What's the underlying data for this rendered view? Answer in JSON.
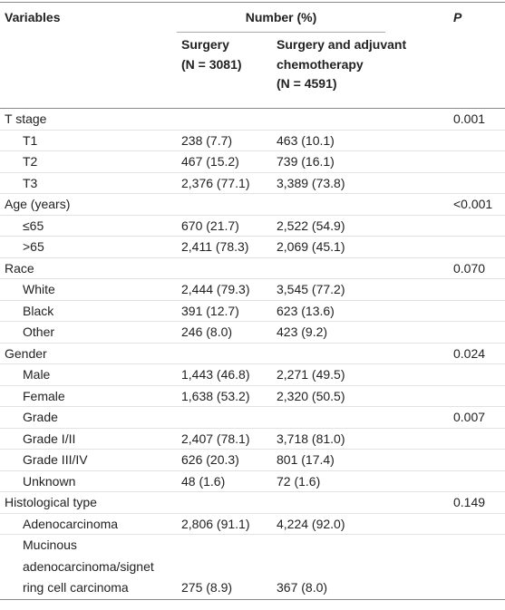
{
  "header": {
    "variables": "Variables",
    "number": "Number (%)",
    "p": "P",
    "surgery": "Surgery",
    "surgery_n": "(N = 3081)",
    "adjuvant": "Surgery and adjuvant chemotherapy",
    "adjuvant_n": "(N = 4591)"
  },
  "rows": [
    {
      "label": "T stage",
      "p": "0.001"
    },
    {
      "label": "T1",
      "surgery": "238 (7.7)",
      "adjuvant": "463 (10.1)"
    },
    {
      "label": "T2",
      "surgery": "467 (15.2)",
      "adjuvant": "739 (16.1)"
    },
    {
      "label": "T3",
      "surgery": "2,376 (77.1)",
      "adjuvant": "3,389 (73.8)"
    },
    {
      "label": "Age (years)",
      "p": "<0.001"
    },
    {
      "label": "≤65",
      "surgery": "670 (21.7)",
      "adjuvant": "2,522 (54.9)"
    },
    {
      "label": ">65",
      "surgery": "2,411 (78.3)",
      "adjuvant": "2,069 (45.1)"
    },
    {
      "label": "Race",
      "p": "0.070"
    },
    {
      "label": "White",
      "surgery": "2,444 (79.3)",
      "adjuvant": "3,545 (77.2)"
    },
    {
      "label": "Black",
      "surgery": "391 (12.7)",
      "adjuvant": "623 (13.6)"
    },
    {
      "label": "Other",
      "surgery": "246 (8.0)",
      "adjuvant": "423 (9.2)"
    },
    {
      "label": "Gender",
      "p": "0.024"
    },
    {
      "label": "Male",
      "surgery": "1,443 (46.8)",
      "adjuvant": "2,271 (49.5)"
    },
    {
      "label": "Female",
      "surgery": "1,638 (53.2)",
      "adjuvant": "2,320 (50.5)"
    },
    {
      "label": "Grade",
      "p": "0.007"
    },
    {
      "label": "Grade I/II",
      "surgery": "2,407 (78.1)",
      "adjuvant": "3,718 (81.0)"
    },
    {
      "label": "Grade III/IV",
      "surgery": "626 (20.3)",
      "adjuvant": "801 (17.4)"
    },
    {
      "label": "Unknown",
      "surgery": "48 (1.6)",
      "adjuvant": "72 (1.6)"
    },
    {
      "label": "Histological type",
      "p": "0.149"
    },
    {
      "label": "Adenocarcinoma",
      "surgery": "2,806 (91.1)",
      "adjuvant": "4,224 (92.0)"
    },
    {
      "label": "Mucinous adenocarcinoma/signet ring cell carcinoma",
      "surgery": "275 (8.9)",
      "adjuvant": "367 (8.0)"
    }
  ]
}
